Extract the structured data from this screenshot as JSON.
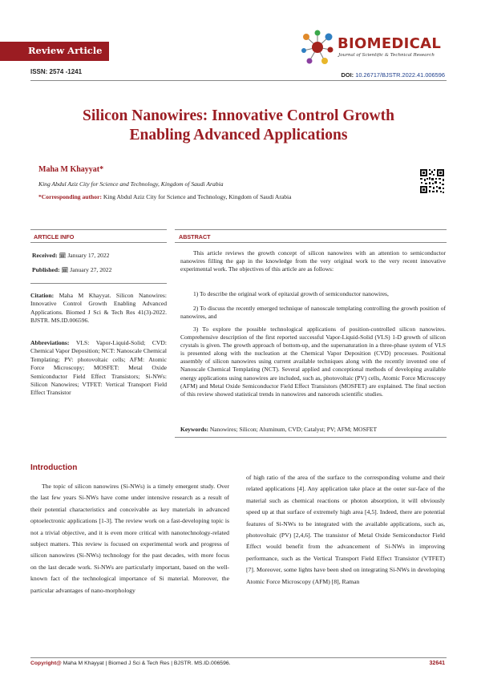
{
  "header": {
    "badge": "Review Article",
    "journal_name": "BIOMEDICAL",
    "journal_subtitle": "Journal of Scientific & Technical Research",
    "issn": "ISSN: 2574 -1241",
    "doi_label": "DOI:",
    "doi_value": "10.26717/BJSTR.2022.41.006596"
  },
  "article": {
    "title_line1": "Silicon Nanowires: Innovative Control Growth",
    "title_line2": "Enabling Advanced Applications",
    "author": "Maha M Khayyat*",
    "affiliation": "King Abdul Aziz City for Science and Technology, Kingdom of Saudi Arabia",
    "corresponding_label": "*Corresponding author:",
    "corresponding_text": " King Abdul Aziz City for Science and Technology, Kingdom of Saudi Arabia"
  },
  "article_info": {
    "heading": "ARTICLE INFO",
    "received_label": "Received:",
    "received_date": " January 17, 2022",
    "published_label": "Published:",
    "published_date": " January 27, 2022",
    "citation_label": "Citation:",
    "citation_text": " Maha M Khayyat. Silicon Nanowires: Innovative Control Growth Enabling Advanced Applications. Biomed J Sci & Tech Res 41(3)-2022. BJSTR. MS.ID.006596.",
    "abbreviations_label": "Abbreviations:",
    "abbreviations_text": " VLS: Vapor-Liquid-Solid; CVD: Chemical Vapor Deposition; NCT: Nanoscale Chemical Templating; PV: photovoltaic cells; AFM: Atomic Force Microscopy; MOSFET: Metal Oxide Semiconductor Field Effect Transistors; Si-NWs: Silicon Nanowires; VTFET: Vertical Transport Field Effect Transistor"
  },
  "abstract": {
    "heading": "ABSTRACT",
    "intro": "This article reviews the growth concept of silicon nanowires with an attention to semiconductor nanowires filling the gap in the knowledge from the very original work to the very recent innovative experimental work. The objectives of this article are as follows:",
    "item1": "1)   To describe the original work of epitaxial growth of semiconductor nanowires,",
    "item2": "2)   To discuss the recently emerged technique of nanoscale templating controlling the growth position of nanowires, and",
    "item3": "3)   To explore the possible technological applications of position-controlled silicon nanowires. Comprehensive description of the first reported successful Vapor-Liquid-Solid (VLS) 1-D growth of silicon crystals is given. The growth approach of bottom-up, and the supersaturation in a three-phase system of VLS is presented along with the nucleation at the Chemical Vapor Deposition (CVD) processes. Positional assembly of silicon nanowires using current available techniques along with the recently invented one of Nanoscale Chemical Templating (NCT). Several applied and conceptional methods of developing available energy applications using nanowires are included, such as, photovoltaic (PV) cells, Atomic Force Microscopy (AFM) and Metal Oxide Semiconductor Field Effect Transistors (MOSFET) are explained. The final section of this review showed statistical trends in nanowires and nanorods scientific studies.",
    "keywords_label": "Keywords:",
    "keywords_text": " Nanowires; Silicon; Aluminum, CVD; Catalyst; PV; AFM; MOSFET"
  },
  "introduction": {
    "heading": "Introduction",
    "col1": "The topic of silicon nanowires (Si-NWs) is a timely emergent study. Over the last few years Si-NWs have come under intensive research as a result of their potential characteristics and conceivable as key materials in advanced optoelectronic applications [1-3]. The review work on a fast-developing topic is not a trivial objective, and it is even more critical with nanotechnology-related subject matters. This review is focused on experimental work and progress of silicon nanowires (Si-NWs) technology for the past decades, with more focus on the last decade work. Si-NWs are particularly important, based on the well-known fact of the technological importance of Si material. Moreover, the particular advantages of nano-morphology",
    "col2": "of high ratio of the area of the surface to the corresponding volume and their related applications [4]. Any application take place at the outer sur-face of the material such as chemical reactions or photon absorption, it will obviously speed up at that surface of extremely high area [4,5]. Indeed, there are potential features of Si-NWs to be integrated with the available applications, such as, photovoltaic (PV) [2,4,6]. The transistor of Metal Oxide Semiconductor Field Effect would benefit from the advancement of Si-NWs in improving performance, such as the Vertical Transport Field Effect Transistor (VTFET) [7]. Moreover, some lights have been shed on integrating Si-NWs in developing Atomic Force Microscopy (AFM) [8], Raman"
  },
  "footer": {
    "copyright_label": "Copyright@",
    "copyright_text": " Maha M Khayyat | Biomed J Sci & Tech Res | BJSTR. MS.ID.006596.",
    "page_number": "32641"
  },
  "colors": {
    "accent": "#9b1c22",
    "doi": "#1f3f8c"
  }
}
